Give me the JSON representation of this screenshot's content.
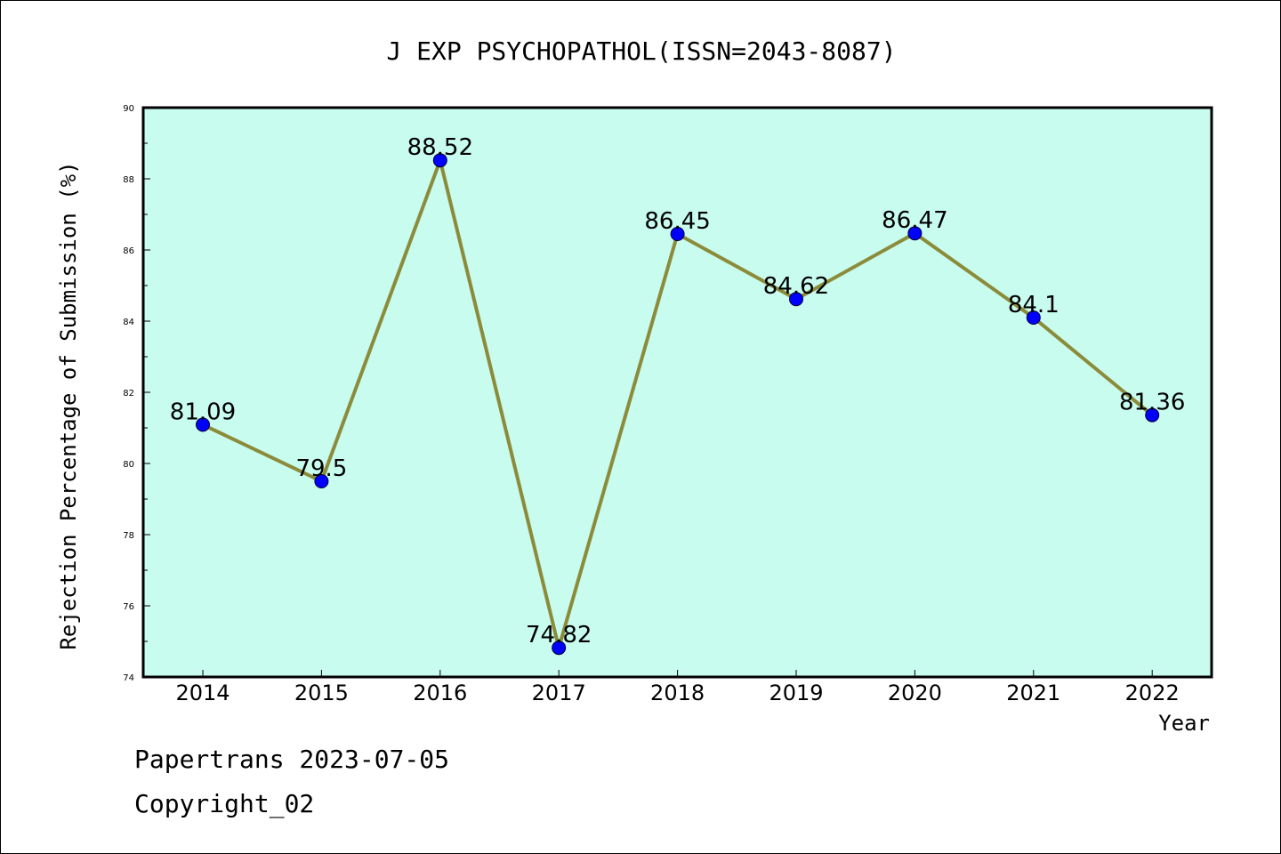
{
  "chart_data": {
    "type": "line",
    "title": "J EXP PSYCHOPATHOL(ISSN=2043-8087)",
    "xlabel": "Year",
    "ylabel": "Rejection Percentage of Submission (%)",
    "categories": [
      "2014",
      "2015",
      "2016",
      "2017",
      "2018",
      "2019",
      "2020",
      "2021",
      "2022"
    ],
    "series": [
      {
        "values": [
          81.09,
          79.5,
          88.52,
          74.82,
          86.45,
          84.62,
          86.47,
          84.1,
          81.36
        ],
        "labels": [
          "81.09",
          "79.5",
          "88.52",
          "74.82",
          "86.45",
          "84.62",
          "86.47",
          "84.1",
          "81.36"
        ],
        "line_color": "#8b8b3a",
        "marker_color": "#0000ff"
      }
    ],
    "ylim": [
      74,
      90
    ],
    "yticks": [
      "74",
      "76",
      "78",
      "80",
      "82",
      "84",
      "86",
      "88",
      "90"
    ],
    "plot_background": "#c8fcee",
    "grid": false,
    "legend": "none"
  },
  "footer": {
    "line1": "Papertrans 2023-07-05",
    "line2": "Copyright_02"
  }
}
